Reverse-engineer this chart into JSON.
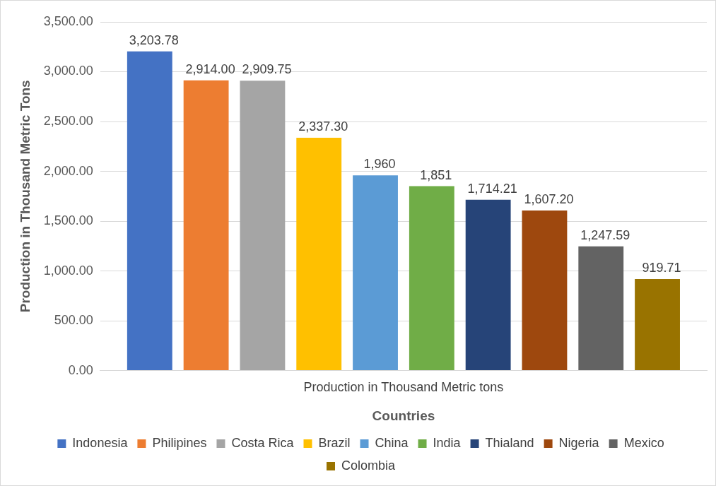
{
  "chart_data": {
    "type": "bar",
    "xlabel": "Countries",
    "ylabel": "Production in Thousand Metric Tons",
    "categories": [
      "Production in Thousand Metric tons"
    ],
    "series": [
      {
        "name": "Indonesia",
        "color": "#4472c4",
        "values": [
          3203.78
        ],
        "value_labels": [
          "3,203.78"
        ]
      },
      {
        "name": "Philipines",
        "color": "#ed7d31",
        "values": [
          2914
        ],
        "value_labels": [
          "2,914.00"
        ]
      },
      {
        "name": "Costa Rica",
        "color": "#a5a5a5",
        "values": [
          2909.75
        ],
        "value_labels": [
          "2,909.75"
        ]
      },
      {
        "name": "Brazil",
        "color": "#ffc000",
        "values": [
          2337.3
        ],
        "value_labels": [
          "2,337.30"
        ]
      },
      {
        "name": "China",
        "color": "#5b9bd5",
        "values": [
          1960
        ],
        "value_labels": [
          "1,960"
        ]
      },
      {
        "name": "India",
        "color": "#70ad47",
        "values": [
          1851
        ],
        "value_labels": [
          "1,851"
        ]
      },
      {
        "name": "Thialand",
        "color": "#264478",
        "values": [
          1714.21
        ],
        "value_labels": [
          "1,714.21"
        ]
      },
      {
        "name": "Nigeria",
        "color": "#9e480e",
        "values": [
          1607.2
        ],
        "value_labels": [
          "1,607.20"
        ]
      },
      {
        "name": "Mexico",
        "color": "#636363",
        "values": [
          1247.59
        ],
        "value_labels": [
          "1,247.59"
        ]
      },
      {
        "name": "Colombia",
        "color": "#997300",
        "values": [
          919.71
        ],
        "value_labels": [
          "919.71"
        ]
      }
    ],
    "ylim": [
      0,
      3500
    ],
    "yticks": [
      {
        "value": 0,
        "label": "0.00"
      },
      {
        "value": 500,
        "label": "500.00"
      },
      {
        "value": 1000,
        "label": "1,000.00"
      },
      {
        "value": 1500,
        "label": "1,500.00"
      },
      {
        "value": 2000,
        "label": "2,000.00"
      },
      {
        "value": 2500,
        "label": "2,500.00"
      },
      {
        "value": 3000,
        "label": "3,000.00"
      },
      {
        "value": 3500,
        "label": "3,500.00"
      }
    ],
    "grid": "y",
    "legend": "bottom"
  }
}
